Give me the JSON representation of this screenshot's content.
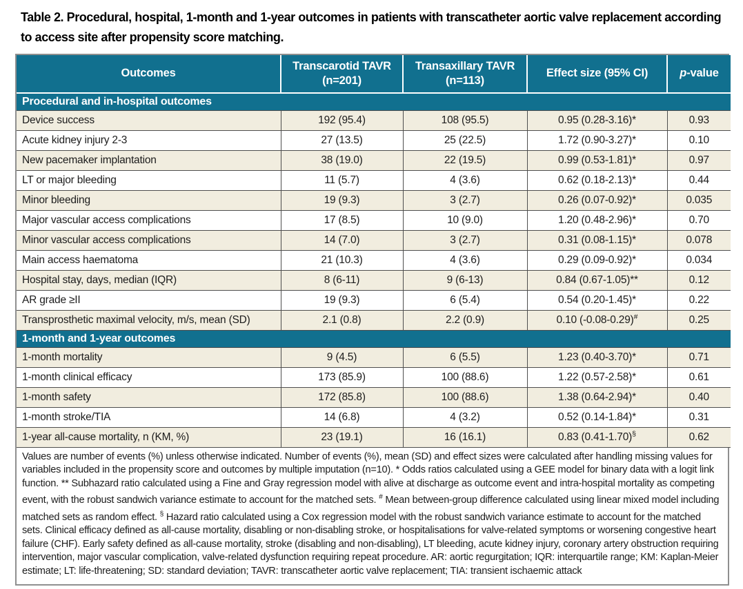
{
  "caption": "Table 2. Procedural, hospital, 1-month and 1-year outcomes in patients with transcatheter aortic valve replacement according to access site after propensity score matching.",
  "colors": {
    "header_teal": "#11708F",
    "row_beige": "#F1EDDF",
    "row_white": "#FFFFFF",
    "inner_border": "#4D4D4D",
    "outer_border": "#8F8F8F"
  },
  "columns": [
    {
      "label": "Outcomes"
    },
    {
      "line1": "Transcarotid TAVR",
      "line2": "(n=201)"
    },
    {
      "line1": "Transaxillary TAVR",
      "line2": "(n=113)"
    },
    {
      "label": "Effect size (95% CI)"
    },
    {
      "italic": "p",
      "rest": "-value"
    }
  ],
  "sections": [
    {
      "label": "Procedural and in-hospital outcomes",
      "rows": [
        {
          "outcome": "Device success",
          "transcarotid": "192 (95.4)",
          "transaxillary": "108 (95.5)",
          "effect": "0.95 (0.28-3.16)*",
          "effect_sup": "",
          "p": "0.93"
        },
        {
          "outcome": "Acute kidney injury 2-3",
          "transcarotid": "27 (13.5)",
          "transaxillary": "25 (22.5)",
          "effect": "1.72 (0.90-3.27)*",
          "effect_sup": "",
          "p": "0.10"
        },
        {
          "outcome": "New pacemaker implantation",
          "transcarotid": "38 (19.0)",
          "transaxillary": "22 (19.5)",
          "effect": "0.99 (0.53-1.81)*",
          "effect_sup": "",
          "p": "0.97"
        },
        {
          "outcome": "LT or major bleeding",
          "transcarotid": "11 (5.7)",
          "transaxillary": "4 (3.6)",
          "effect": "0.62 (0.18-2.13)*",
          "effect_sup": "",
          "p": "0.44"
        },
        {
          "outcome": "Minor bleeding",
          "transcarotid": "19 (9.3)",
          "transaxillary": "3 (2.7)",
          "effect": "0.26 (0.07-0.92)*",
          "effect_sup": "",
          "p": "0.035"
        },
        {
          "outcome": "Major vascular access complications",
          "transcarotid": "17 (8.5)",
          "transaxillary": "10 (9.0)",
          "effect": "1.20 (0.48-2.96)*",
          "effect_sup": "",
          "p": "0.70"
        },
        {
          "outcome": "Minor vascular access complications",
          "transcarotid": "14 (7.0)",
          "transaxillary": "3 (2.7)",
          "effect": "0.31 (0.08-1.15)*",
          "effect_sup": "",
          "p": "0.078"
        },
        {
          "outcome": "Main access haematoma",
          "transcarotid": "21 (10.3)",
          "transaxillary": "4 (3.6)",
          "effect": "0.29 (0.09-0.92)*",
          "effect_sup": "",
          "p": "0.034"
        },
        {
          "outcome": "Hospital stay, days, median (IQR)",
          "transcarotid": "8 (6-11)",
          "transaxillary": "9 (6-13)",
          "effect": "0.84 (0.67-1.05)**",
          "effect_sup": "",
          "p": "0.12"
        },
        {
          "outcome": "AR grade ≥II",
          "transcarotid": "19 (9.3)",
          "transaxillary": "6 (5.4)",
          "effect": "0.54 (0.20-1.45)*",
          "effect_sup": "",
          "p": "0.22"
        },
        {
          "outcome": "Transprosthetic maximal velocity, m/s, mean (SD)",
          "transcarotid": "2.1 (0.8)",
          "transaxillary": "2.2 (0.9)",
          "effect": "0.10 (-0.08-0.29)",
          "effect_sup": "#",
          "p": "0.25"
        }
      ]
    },
    {
      "label": "1-month and 1-year outcomes",
      "rows": [
        {
          "outcome": "1-month mortality",
          "transcarotid": "9 (4.5)",
          "transaxillary": "6 (5.5)",
          "effect": "1.23 (0.40-3.70)*",
          "effect_sup": "",
          "p": "0.71"
        },
        {
          "outcome": "1-month clinical efficacy",
          "transcarotid": "173 (85.9)",
          "transaxillary": "100 (88.6)",
          "effect": "1.22 (0.57-2.58)*",
          "effect_sup": "",
          "p": "0.61"
        },
        {
          "outcome": "1-month safety",
          "transcarotid": "172 (85.8)",
          "transaxillary": "100 (88.6)",
          "effect": "1.38 (0.64-2.94)*",
          "effect_sup": "",
          "p": "0.40"
        },
        {
          "outcome": "1-month stroke/TIA",
          "transcarotid": "14 (6.8)",
          "transaxillary": "4 (3.2)",
          "effect": "0.52 (0.14-1.84)*",
          "effect_sup": "",
          "p": "0.31"
        },
        {
          "outcome": "1-year all-cause mortality, n (KM, %)",
          "transcarotid": "23 (19.1)",
          "transaxillary": "16 (16.1)",
          "effect": "0.83 (0.41-1.70)",
          "effect_sup": "§",
          "p": "0.62"
        }
      ]
    }
  ],
  "footnote": {
    "segments": [
      {
        "text": "Values are number of events (%) unless otherwise indicated. Number of events (%), mean (SD) and effect sizes were calculated after handling missing values for variables included in the propensity score and outcomes by multiple imputation (n=10). * Odds ratios calculated using a GEE model for binary data with a logit link function. ** Subhazard ratio calculated using a Fine and Gray regression model with alive at discharge as outcome event and intra-hospital mortality as competing event, with the robust sandwich variance estimate to account for the matched sets. ",
        "sup": false
      },
      {
        "text": "#",
        "sup": true
      },
      {
        "text": " Mean between-group difference calculated using linear mixed model including matched sets as random effect. ",
        "sup": false
      },
      {
        "text": "§",
        "sup": true
      },
      {
        "text": " Hazard ratio calculated using a Cox regression model with the robust sandwich variance estimate to account for the matched sets. Clinical efficacy defined as all-cause mortality, disabling or non-disabling stroke, or hospitalisations for valve-related symptoms or worsening congestive heart failure (CHF). Early safety defined as all-cause mortality, stroke (disabling and non-disabling), LT bleeding, acute kidney injury, coronary artery obstruction requiring intervention, major vascular complication, valve-related dysfunction requiring repeat procedure. AR: aortic regurgitation; IQR: interquartile range; KM: Kaplan-Meier estimate; LT: life-threatening; SD: standard deviation; TAVR: transcatheter aortic valve replacement; TIA: transient ischaemic attack",
        "sup": false
      }
    ]
  }
}
